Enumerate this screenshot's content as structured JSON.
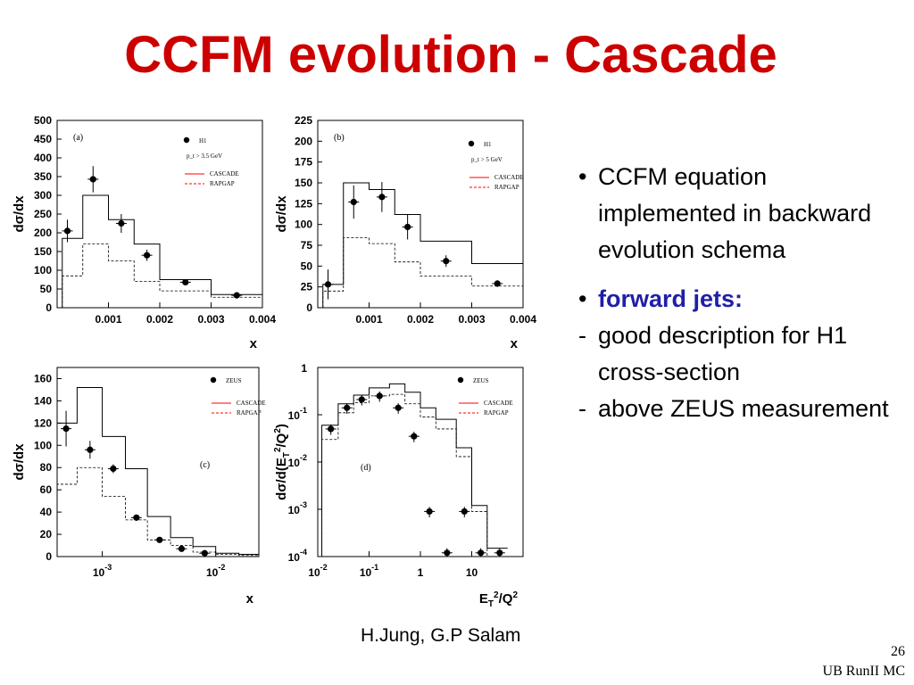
{
  "title": "CCFM evolution - Cascade",
  "bullets": {
    "item1": "CCFM equation implemented in backward evolution schema",
    "item2": "forward jets:",
    "dash1": "good description for H1 cross-section",
    "dash2": "above ZEUS measurement",
    "bullet_char": "•",
    "dash_char": "-"
  },
  "author": "H.Jung, G.P Salam",
  "slide_number": "26",
  "footer": "UB RunII MC",
  "colors": {
    "title": "#cc0000",
    "forward_jets": "#1f1fa8",
    "cascade": "#ff0000",
    "rapgap": "#ff0000"
  },
  "chart_data": [
    {
      "type": "step",
      "panel_label": "(a)",
      "ylabel": "dσ/dx",
      "xlabel": "x",
      "xscale": "linear",
      "xlim": [
        0,
        0.004
      ],
      "ylim": [
        0,
        500
      ],
      "xticks": [
        0.001,
        0.002,
        0.003,
        0.004
      ],
      "xtick_labels": [
        "0.001",
        "0.002",
        "0.003",
        "0.004"
      ],
      "yticks": [
        0,
        50,
        100,
        150,
        200,
        250,
        300,
        350,
        400,
        450,
        500
      ],
      "ytick_labels": [
        "0",
        "50",
        "100",
        "150",
        "200",
        "250",
        "300",
        "350",
        "400",
        "450",
        "500"
      ],
      "legend": {
        "data": "H1",
        "cut": "p_t > 3.5 GeV",
        "cascade": "CASCADE",
        "rapgap": "RAPGAP"
      },
      "bin_edges": [
        0.0001,
        0.0005,
        0.001,
        0.0015,
        0.002,
        0.003,
        0.004
      ],
      "cascade": [
        185,
        300,
        235,
        170,
        75,
        35
      ],
      "rapgap": [
        85,
        170,
        125,
        70,
        45,
        28
      ],
      "data": {
        "x": [
          0.0002,
          0.0007,
          0.00125,
          0.00175,
          0.0025,
          0.0035
        ],
        "y": [
          205,
          343,
          225,
          140,
          68,
          33
        ],
        "yerr": [
          30,
          35,
          25,
          15,
          6,
          3
        ]
      }
    },
    {
      "type": "step",
      "panel_label": "(b)",
      "ylabel": "dσ/dx",
      "xlabel": "x",
      "xscale": "linear",
      "xlim": [
        0,
        0.004
      ],
      "ylim": [
        0,
        225
      ],
      "xticks": [
        0.001,
        0.002,
        0.003,
        0.004
      ],
      "xtick_labels": [
        "0.001",
        "0.002",
        "0.003",
        "0.004"
      ],
      "yticks": [
        0,
        25,
        50,
        75,
        100,
        125,
        150,
        175,
        200,
        225
      ],
      "ytick_labels": [
        "0",
        "25",
        "50",
        "75",
        "100",
        "125",
        "150",
        "175",
        "200",
        "225"
      ],
      "legend": {
        "data": "H1",
        "cut": "p_t > 5 GeV",
        "cascade": "CASCADE",
        "rapgap": "RAPGAP"
      },
      "bin_edges": [
        0.0001,
        0.0005,
        0.001,
        0.0015,
        0.002,
        0.003,
        0.004
      ],
      "cascade": [
        28,
        150,
        142,
        112,
        80,
        53
      ],
      "rapgap": [
        20,
        84,
        77,
        55,
        38,
        26
      ],
      "data": {
        "x": [
          0.0002,
          0.0007,
          0.00125,
          0.00175,
          0.0025,
          0.0035
        ],
        "y": [
          28,
          127,
          133,
          97,
          56,
          29
        ],
        "yerr": [
          18,
          20,
          18,
          15,
          7,
          4
        ]
      }
    },
    {
      "type": "step",
      "panel_label": "(c)",
      "ylabel": "dσ/dx",
      "xlabel": "x",
      "xscale": "log",
      "xlim": [
        0.0004,
        0.024
      ],
      "ylim": [
        0,
        170
      ],
      "xticks": [
        0.001,
        0.01
      ],
      "xtick_labels": [
        [
          "10",
          "-3"
        ],
        [
          "10",
          "-2"
        ]
      ],
      "yticks": [
        0,
        20,
        40,
        60,
        80,
        100,
        120,
        140,
        160
      ],
      "ytick_labels": [
        "0",
        "20",
        "40",
        "60",
        "80",
        "100",
        "120",
        "140",
        "160"
      ],
      "legend": {
        "data": "ZEUS",
        "cascade": "CASCADE",
        "rapgap": "RAPGAP"
      },
      "bin_edges": [
        0.0004,
        0.0006,
        0.001,
        0.0016,
        0.0025,
        0.004,
        0.0063,
        0.01,
        0.016,
        0.024
      ],
      "cascade": [
        120,
        152,
        108,
        79,
        36,
        17,
        9,
        3,
        2
      ],
      "rapgap": [
        65,
        80,
        54,
        33,
        15,
        10,
        4,
        2,
        1
      ],
      "data": {
        "x": [
          0.00048,
          0.00078,
          0.00125,
          0.002,
          0.0032,
          0.005,
          0.008
        ],
        "y": [
          115,
          96,
          79,
          35,
          15,
          7,
          3
        ],
        "yerr": [
          16,
          8,
          4,
          2,
          1,
          1,
          1
        ]
      }
    },
    {
      "type": "step",
      "panel_label": "(d)",
      "ylabel": "dσ/d(E_T²/Q²)",
      "xlabel": "E_T²/Q²",
      "xscale": "log",
      "yscale": "log",
      "xlim": [
        0.01,
        100
      ],
      "ylim": [
        0.0001,
        1
      ],
      "xticks": [
        0.01,
        0.1,
        1,
        10
      ],
      "xtick_labels": [
        [
          "10",
          "-2"
        ],
        [
          "10",
          "-1"
        ],
        [
          "1",
          ""
        ],
        [
          "10",
          ""
        ]
      ],
      "yticks": [
        1,
        0.1,
        0.01,
        0.001,
        0.0001
      ],
      "ytick_labels": [
        [
          "1",
          ""
        ],
        [
          "10",
          "-1"
        ],
        [
          "10",
          "-2"
        ],
        [
          "10",
          "-3"
        ],
        [
          "10",
          "-4"
        ]
      ],
      "legend": {
        "data": "ZEUS",
        "cascade": "CASCADE",
        "rapgap": "RAPGAP"
      },
      "bin_edges": [
        0.012,
        0.025,
        0.05,
        0.1,
        0.25,
        0.5,
        1,
        2,
        5,
        10,
        20,
        50
      ],
      "cascade": [
        0.06,
        0.17,
        0.26,
        0.37,
        0.45,
        0.3,
        0.14,
        0.08,
        0.02,
        0.0012,
        0.00015
      ],
      "rapgap": [
        0.03,
        0.11,
        0.18,
        0.25,
        0.27,
        0.17,
        0.09,
        0.05,
        0.013,
        0.0009,
        8e-05
      ],
      "data": {
        "x": [
          0.018,
          0.037,
          0.072,
          0.16,
          0.37,
          0.75,
          1.5,
          3.3,
          7.2,
          15,
          35
        ],
        "y": [
          0.05,
          0.14,
          0.21,
          0.25,
          0.14,
          0.035,
          0.0009,
          0.00012,
          0.0009,
          0.00012,
          0.00012
        ],
        "yerr_rel": 0.25
      }
    }
  ]
}
